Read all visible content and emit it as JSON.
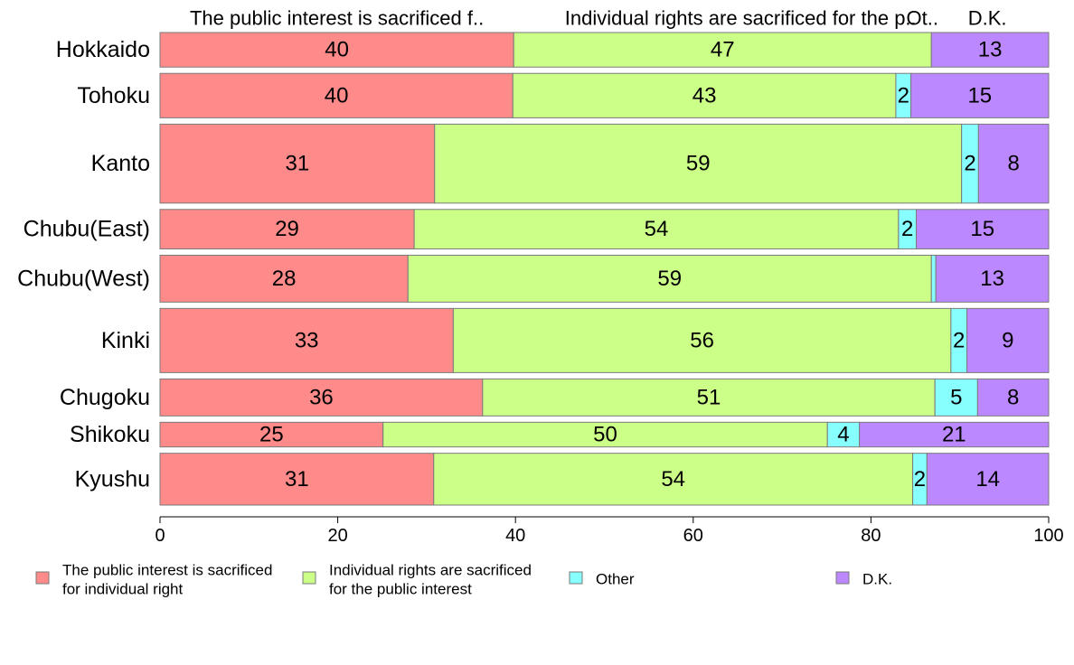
{
  "chart_data": {
    "type": "bar",
    "orientation": "horizontal",
    "stacked": true,
    "categories": [
      "Hokkaido",
      "Tohoku",
      "Kanto",
      "Chubu(East)",
      "Chubu(West)",
      "Kinki",
      "Chugoku",
      "Shikoku",
      "Kyushu"
    ],
    "category_weights": [
      0.7,
      0.9,
      1.6,
      0.8,
      0.95,
      1.3,
      0.75,
      0.5,
      1.05
    ],
    "series": [
      {
        "name": "The public interest is sacrificed for individual right",
        "header_label": "The public interest is sacrificed f..",
        "legend_lines": [
          "The public interest is sacrificed",
          "for individual right"
        ],
        "color": "#FF8A8A",
        "values": [
          39.8,
          39.7,
          30.9,
          28.6,
          27.9,
          33.0,
          36.3,
          25.1,
          30.8
        ],
        "labels": [
          "40",
          "40",
          "31",
          "29",
          "28",
          "33",
          "36",
          "25",
          "31"
        ]
      },
      {
        "name": "Individual rights are sacrificed for the public interest",
        "header_label": "Individual rights are sacrificed for the p..",
        "legend_lines": [
          "Individual rights are sacrificed",
          "for the public interest"
        ],
        "color": "#CCFF88",
        "values": [
          47.0,
          43.1,
          59.3,
          54.5,
          58.9,
          56.0,
          50.9,
          50.0,
          53.9
        ],
        "labels": [
          "47",
          "43",
          "59",
          "54",
          "59",
          "56",
          "51",
          "50",
          "54"
        ]
      },
      {
        "name": "Other",
        "header_label": "Ot..",
        "legend_lines": [
          "Other"
        ],
        "color": "#88FFFF",
        "values": [
          0.0,
          1.7,
          1.9,
          2.0,
          0.5,
          1.8,
          4.8,
          3.6,
          1.6
        ],
        "labels": [
          "",
          "2",
          "2",
          "2",
          "",
          "2",
          "5",
          "4",
          "2"
        ]
      },
      {
        "name": "D.K.",
        "header_label": "D.K.",
        "legend_lines": [
          "D.K."
        ],
        "color": "#BB88FF",
        "values": [
          13.2,
          15.5,
          7.9,
          14.9,
          12.7,
          9.2,
          8.0,
          21.3,
          13.7
        ],
        "labels": [
          "13",
          "15",
          "8",
          "15",
          "13",
          "9",
          "8",
          "21",
          "14"
        ]
      }
    ],
    "xlim": [
      0,
      100
    ],
    "xticks": [
      "0",
      "20",
      "40",
      "60",
      "80",
      "100"
    ],
    "title": "",
    "xlabel": "",
    "ylabel": "",
    "grid": false,
    "legend_placement": "bottom"
  }
}
